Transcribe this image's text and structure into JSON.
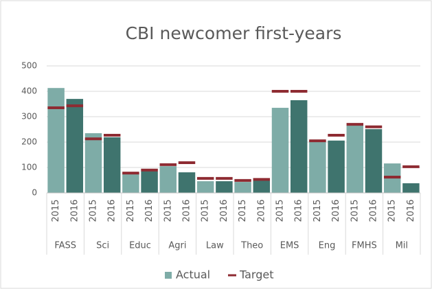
{
  "chart_data": {
    "type": "bar",
    "title": "CBI newcomer first-years",
    "groups": [
      {
        "name": "FASS",
        "categories": [
          "2015",
          "2016"
        ]
      },
      {
        "name": "Sci",
        "categories": [
          "2015",
          "2016"
        ]
      },
      {
        "name": "Educ",
        "categories": [
          "2015",
          "2016"
        ]
      },
      {
        "name": "Agri",
        "categories": [
          "2015",
          "2016"
        ]
      },
      {
        "name": "Law",
        "categories": [
          "2015",
          "2016"
        ]
      },
      {
        "name": "Theo",
        "categories": [
          "2015",
          "2016"
        ]
      },
      {
        "name": "EMS",
        "categories": [
          "2015",
          "2016"
        ]
      },
      {
        "name": "Eng",
        "categories": [
          "2015",
          "2016"
        ]
      },
      {
        "name": "FMHS",
        "categories": [
          "2015",
          "2016"
        ]
      },
      {
        "name": "Mil",
        "categories": [
          "2015",
          "2016"
        ]
      }
    ],
    "series": [
      {
        "name": "Actual",
        "color": "#7eaca7",
        "alt_color": "#3f746e",
        "values": [
          413,
          370,
          235,
          219,
          78,
          85,
          105,
          81,
          46,
          46,
          43,
          49,
          335,
          365,
          208,
          206,
          265,
          251,
          116,
          38
        ]
      },
      {
        "name": "Target",
        "color": "#8e2b32",
        "values": [
          335,
          343,
          213,
          227,
          78,
          90,
          111,
          119,
          57,
          57,
          49,
          53,
          400,
          400,
          205,
          227,
          270,
          260,
          62,
          103
        ]
      }
    ],
    "ylim": [
      0,
      500
    ],
    "yticks": [
      0,
      100,
      200,
      300,
      400,
      500
    ],
    "grid": true,
    "legend": "bottom"
  }
}
